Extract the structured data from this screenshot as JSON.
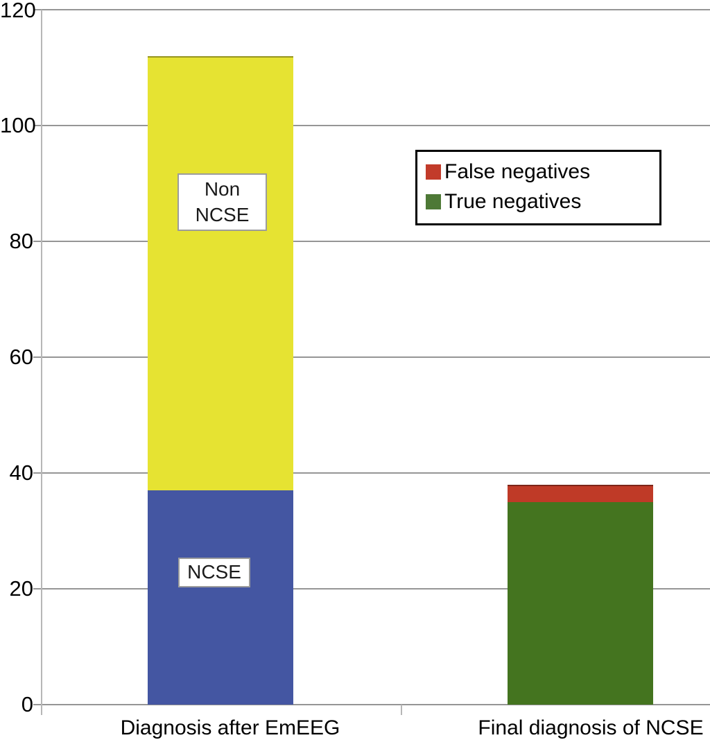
{
  "chart_data": {
    "type": "bar",
    "stacked": true,
    "title": "",
    "xlabel": "",
    "ylabel": "",
    "ylim": [
      0,
      120
    ],
    "yticks": [
      0,
      20,
      40,
      60,
      80,
      100,
      120
    ],
    "grid": true,
    "legend_position": "upper-right",
    "categories": [
      "Diagnosis after EmEEG",
      "Final diagnosis of NCSE"
    ],
    "series": [
      {
        "name": "NCSE",
        "color": "#4456a2",
        "values": [
          37,
          0
        ]
      },
      {
        "name": "Non NCSE",
        "color": "#e6e332",
        "values": [
          75,
          0
        ]
      },
      {
        "name": "True negatives",
        "color": "#44741f",
        "values": [
          0,
          35
        ]
      },
      {
        "name": "False negatives",
        "color": "#bf3a27",
        "values": [
          0,
          3
        ]
      }
    ],
    "bar_totals": [
      112,
      38
    ],
    "legend": [
      {
        "label": "False negatives",
        "color": "#c23b2a"
      },
      {
        "label": "True negatives",
        "color": "#4e7936"
      }
    ]
  },
  "annotations": {
    "non_ncse": {
      "line1": "Non",
      "line2": "NCSE"
    },
    "ncse": {
      "text": "NCSE"
    }
  },
  "colors": {
    "gridline": "#959595",
    "axis": "#b6b6b6",
    "background": "#ffffff"
  }
}
